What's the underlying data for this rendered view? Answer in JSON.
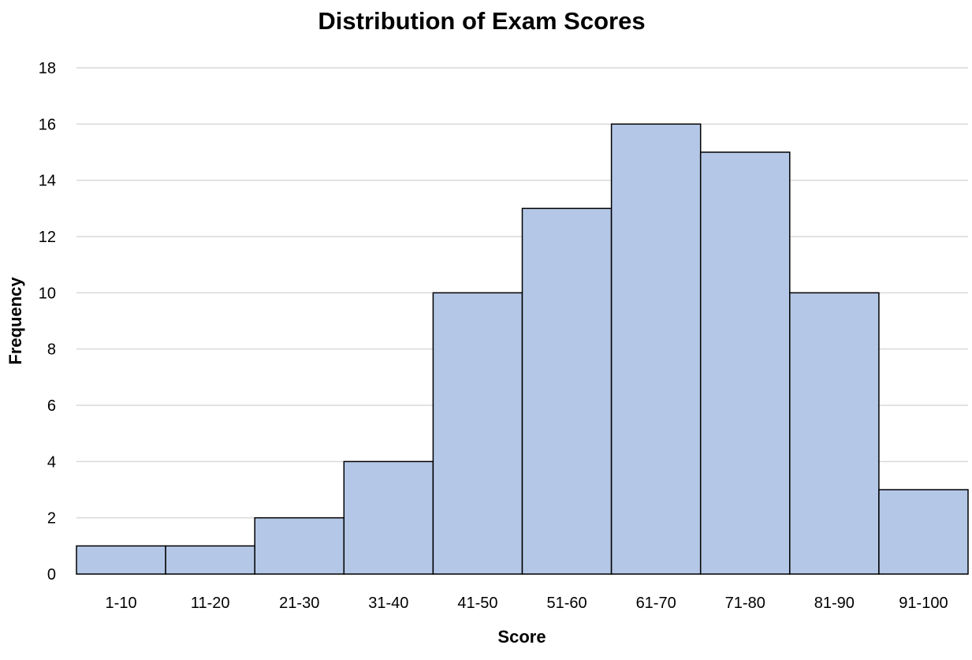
{
  "chart_data": {
    "type": "bar",
    "title": "Distribution of Exam Scores",
    "xlabel": "Score",
    "ylabel": "Frequency",
    "categories": [
      "1-10",
      "11-20",
      "21-30",
      "31-40",
      "41-50",
      "51-60",
      "61-70",
      "71-80",
      "81-90",
      "91-100"
    ],
    "values": [
      1,
      1,
      2,
      4,
      10,
      13,
      16,
      15,
      10,
      3
    ],
    "ylim": [
      0,
      18
    ],
    "yticks": [
      0,
      2,
      4,
      6,
      8,
      10,
      12,
      14,
      16,
      18
    ],
    "grid": "horizontal",
    "bar_gap": "none",
    "legend": "none",
    "colors": {
      "bar_fill": "#b4c7e7",
      "bar_edge": "#000000",
      "grid": "#d9d9d9"
    }
  }
}
